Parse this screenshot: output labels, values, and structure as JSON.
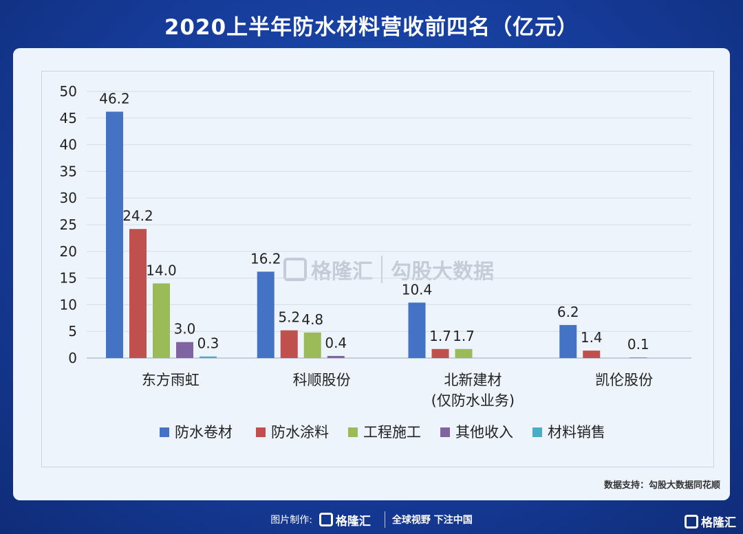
{
  "page_title": "2020上半年防水材料营收前四名（亿元）",
  "source_note": "数据支持：勾股大数据同花顺",
  "watermark": {
    "brand": "格隆汇",
    "product": "勾股大数据"
  },
  "footer": {
    "made_by_label": "图片制作:",
    "brand": "格隆汇",
    "slogan": "全球视野 下注中国"
  },
  "corner_brand": "格隆汇",
  "chart_data": {
    "type": "bar",
    "title": "",
    "categories": [
      "东方雨虹",
      "科顺股份",
      "北新建材\n(仅防水业务)",
      "凯伦股份"
    ],
    "category_lines": [
      [
        "东方雨虹"
      ],
      [
        "科顺股份"
      ],
      [
        "北新建材",
        "(仅防水业务)"
      ],
      [
        "凯伦股份"
      ]
    ],
    "series": [
      {
        "name": "防水卷材",
        "color": "#4472c4",
        "values": [
          46.2,
          16.2,
          10.4,
          6.2
        ],
        "labels": [
          "46.2",
          "16.2",
          "10.4",
          "6.2"
        ]
      },
      {
        "name": "防水涂料",
        "color": "#c0504d",
        "values": [
          24.2,
          5.2,
          1.7,
          1.4
        ],
        "labels": [
          "24.2",
          "5.2",
          "1.7",
          "1.4"
        ]
      },
      {
        "name": "工程施工",
        "color": "#9bbb59",
        "values": [
          14.0,
          4.8,
          1.7,
          0
        ],
        "labels": [
          "14.0",
          "4.8",
          "1.7",
          ""
        ]
      },
      {
        "name": "其他收入",
        "color": "#8064a2",
        "values": [
          3.0,
          0.4,
          0,
          0.1
        ],
        "labels": [
          "3.0",
          "0.4",
          "",
          "0.1"
        ]
      },
      {
        "name": "材料销售",
        "color": "#4bacc6",
        "values": [
          0.3,
          0,
          0,
          0
        ],
        "labels": [
          "0.3",
          "",
          "",
          ""
        ]
      }
    ],
    "ylim": [
      0,
      50
    ],
    "yticks": [
      0,
      5,
      10,
      15,
      20,
      25,
      30,
      35,
      40,
      45,
      50
    ],
    "xlabel": "",
    "ylabel": "",
    "grid": true,
    "legend_position": "bottom"
  }
}
